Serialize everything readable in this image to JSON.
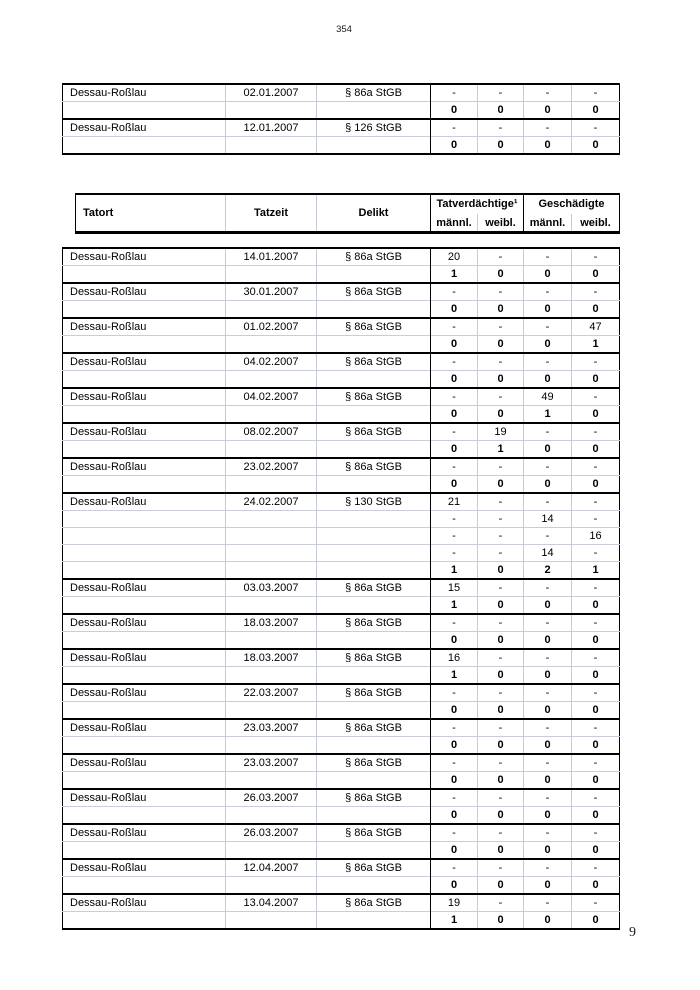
{
  "page": {
    "top_page_number": "354",
    "bottom_page_number": "9"
  },
  "columns": {
    "tatort": "Tatort",
    "tatzeit": "Tatzeit",
    "delikt": "Delikt",
    "tatverdaechtige": "Tatverdächtige¹",
    "geschaedigte": "Geschädigte",
    "maennl": "männl.",
    "weibl": "weibl."
  },
  "top_table": {
    "blocks": [
      {
        "tatort": "Dessau-Roßlau",
        "tatzeit": "02.01.2007",
        "delikt": "§ 86a StGB",
        "value_rows": [
          [
            "-",
            "-",
            "-",
            "-"
          ]
        ],
        "total_row": [
          "0",
          "0",
          "0",
          "0"
        ]
      },
      {
        "tatort": "Dessau-Roßlau",
        "tatzeit": "12.01.2007",
        "delikt": "§ 126 StGB",
        "value_rows": [
          [
            "-",
            "-",
            "-",
            "-"
          ]
        ],
        "total_row": [
          "0",
          "0",
          "0",
          "0"
        ]
      }
    ]
  },
  "main_table": {
    "blocks": [
      {
        "tatort": "Dessau-Roßlau",
        "tatzeit": "14.01.2007",
        "delikt": "§ 86a StGB",
        "value_rows": [
          [
            "20",
            "-",
            "-",
            "-"
          ]
        ],
        "total_row": [
          "1",
          "0",
          "0",
          "0"
        ]
      },
      {
        "tatort": "Dessau-Roßlau",
        "tatzeit": "30.01.2007",
        "delikt": "§ 86a StGB",
        "value_rows": [
          [
            "-",
            "-",
            "-",
            "-"
          ]
        ],
        "total_row": [
          "0",
          "0",
          "0",
          "0"
        ]
      },
      {
        "tatort": "Dessau-Roßlau",
        "tatzeit": "01.02.2007",
        "delikt": "§ 86a StGB",
        "value_rows": [
          [
            "-",
            "-",
            "-",
            "47"
          ]
        ],
        "total_row": [
          "0",
          "0",
          "0",
          "1"
        ]
      },
      {
        "tatort": "Dessau-Roßlau",
        "tatzeit": "04.02.2007",
        "delikt": "§ 86a StGB",
        "value_rows": [
          [
            "-",
            "-",
            "-",
            "-"
          ]
        ],
        "total_row": [
          "0",
          "0",
          "0",
          "0"
        ]
      },
      {
        "tatort": "Dessau-Roßlau",
        "tatzeit": "04.02.2007",
        "delikt": "§ 86a StGB",
        "value_rows": [
          [
            "-",
            "-",
            "49",
            "-"
          ]
        ],
        "total_row": [
          "0",
          "0",
          "1",
          "0"
        ]
      },
      {
        "tatort": "Dessau-Roßlau",
        "tatzeit": "08.02.2007",
        "delikt": "§ 86a StGB",
        "value_rows": [
          [
            "-",
            "19",
            "-",
            "-"
          ]
        ],
        "total_row": [
          "0",
          "1",
          "0",
          "0"
        ]
      },
      {
        "tatort": "Dessau-Roßlau",
        "tatzeit": "23.02.2007",
        "delikt": "§ 86a StGB",
        "value_rows": [
          [
            "-",
            "-",
            "-",
            "-"
          ]
        ],
        "total_row": [
          "0",
          "0",
          "0",
          "0"
        ]
      },
      {
        "tatort": "Dessau-Roßlau",
        "tatzeit": "24.02.2007",
        "delikt": "§ 130 StGB",
        "value_rows": [
          [
            "21",
            "-",
            "-",
            "-"
          ],
          [
            "-",
            "-",
            "14",
            "-"
          ],
          [
            "-",
            "-",
            "-",
            "16"
          ],
          [
            "-",
            "-",
            "14",
            "-"
          ]
        ],
        "total_row": [
          "1",
          "0",
          "2",
          "1"
        ]
      },
      {
        "tatort": "Dessau-Roßlau",
        "tatzeit": "03.03.2007",
        "delikt": "§ 86a StGB",
        "value_rows": [
          [
            "15",
            "-",
            "-",
            "-"
          ]
        ],
        "total_row": [
          "1",
          "0",
          "0",
          "0"
        ]
      },
      {
        "tatort": "Dessau-Roßlau",
        "tatzeit": "18.03.2007",
        "delikt": "§ 86a StGB",
        "value_rows": [
          [
            "-",
            "-",
            "-",
            "-"
          ]
        ],
        "total_row": [
          "0",
          "0",
          "0",
          "0"
        ]
      },
      {
        "tatort": "Dessau-Roßlau",
        "tatzeit": "18.03.2007",
        "delikt": "§ 86a StGB",
        "value_rows": [
          [
            "16",
            "-",
            "-",
            "-"
          ]
        ],
        "total_row": [
          "1",
          "0",
          "0",
          "0"
        ]
      },
      {
        "tatort": "Dessau-Roßlau",
        "tatzeit": "22.03.2007",
        "delikt": "§ 86a StGB",
        "value_rows": [
          [
            "-",
            "-",
            "-",
            "-"
          ]
        ],
        "total_row": [
          "0",
          "0",
          "0",
          "0"
        ]
      },
      {
        "tatort": "Dessau-Roßlau",
        "tatzeit": "23.03.2007",
        "delikt": "§ 86a StGB",
        "value_rows": [
          [
            "-",
            "-",
            "-",
            "-"
          ]
        ],
        "total_row": [
          "0",
          "0",
          "0",
          "0"
        ]
      },
      {
        "tatort": "Dessau-Roßlau",
        "tatzeit": "23.03.2007",
        "delikt": "§ 86a StGB",
        "value_rows": [
          [
            "-",
            "-",
            "-",
            "-"
          ]
        ],
        "total_row": [
          "0",
          "0",
          "0",
          "0"
        ]
      },
      {
        "tatort": "Dessau-Roßlau",
        "tatzeit": "26.03.2007",
        "delikt": "§ 86a StGB",
        "value_rows": [
          [
            "-",
            "-",
            "-",
            "-"
          ]
        ],
        "total_row": [
          "0",
          "0",
          "0",
          "0"
        ]
      },
      {
        "tatort": "Dessau-Roßlau",
        "tatzeit": "26.03.2007",
        "delikt": "§ 86a StGB",
        "value_rows": [
          [
            "-",
            "-",
            "-",
            "-"
          ]
        ],
        "total_row": [
          "0",
          "0",
          "0",
          "0"
        ]
      },
      {
        "tatort": "Dessau-Roßlau",
        "tatzeit": "12.04.2007",
        "delikt": "§ 86a StGB",
        "value_rows": [
          [
            "-",
            "-",
            "-",
            "-"
          ]
        ],
        "total_row": [
          "0",
          "0",
          "0",
          "0"
        ]
      },
      {
        "tatort": "Dessau-Roßlau",
        "tatzeit": "13.04.2007",
        "delikt": "§ 86a StGB",
        "value_rows": [
          [
            "19",
            "-",
            "-",
            "-"
          ]
        ],
        "total_row": [
          "1",
          "0",
          "0",
          "0"
        ]
      }
    ]
  }
}
